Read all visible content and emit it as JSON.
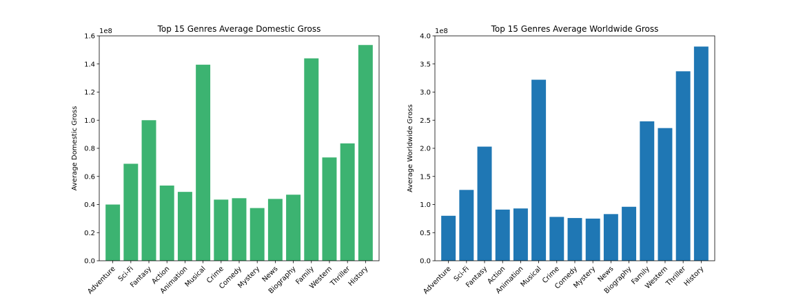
{
  "chart_data": [
    {
      "type": "bar",
      "title": "Top 15 Genres Average Domestic Gross",
      "xlabel": "",
      "ylabel": "Average Domestic Gross",
      "offset_label": "1e8",
      "color": "#3cb371",
      "ylim": [
        0,
        1.6
      ],
      "yticks": [
        "0.0",
        "0.2",
        "0.4",
        "0.6",
        "0.8",
        "1.0",
        "1.2",
        "1.4",
        "1.6"
      ],
      "categories": [
        "Adventure",
        "Sci-Fi",
        "Fantasy",
        "Action",
        "Animation",
        "Musical",
        "Crime",
        "Comedy",
        "Mystery",
        "News",
        "Biography",
        "Family",
        "Western",
        "Thriller",
        "History"
      ],
      "values": [
        0.4,
        0.69,
        1.0,
        0.535,
        0.49,
        1.395,
        0.435,
        0.445,
        0.375,
        0.44,
        0.47,
        1.44,
        0.735,
        0.835,
        1.535
      ]
    },
    {
      "type": "bar",
      "title": "Top 15 Genres Average Worldwide Gross",
      "xlabel": "",
      "ylabel": "Average Worldwide Gross",
      "offset_label": "1e8",
      "color": "#1f77b4",
      "ylim": [
        0,
        4.0
      ],
      "yticks": [
        "0.0",
        "0.5",
        "1.0",
        "1.5",
        "2.0",
        "2.5",
        "3.0",
        "3.5",
        "4.0"
      ],
      "categories": [
        "Adventure",
        "Sci-Fi",
        "Fantasy",
        "Action",
        "Animation",
        "Musical",
        "Crime",
        "Comedy",
        "Mystery",
        "News",
        "Biography",
        "Family",
        "Western",
        "Thriller",
        "History"
      ],
      "values": [
        0.8,
        1.26,
        2.03,
        0.91,
        0.93,
        3.22,
        0.78,
        0.76,
        0.75,
        0.83,
        0.96,
        2.48,
        2.36,
        3.37,
        3.81
      ]
    }
  ]
}
